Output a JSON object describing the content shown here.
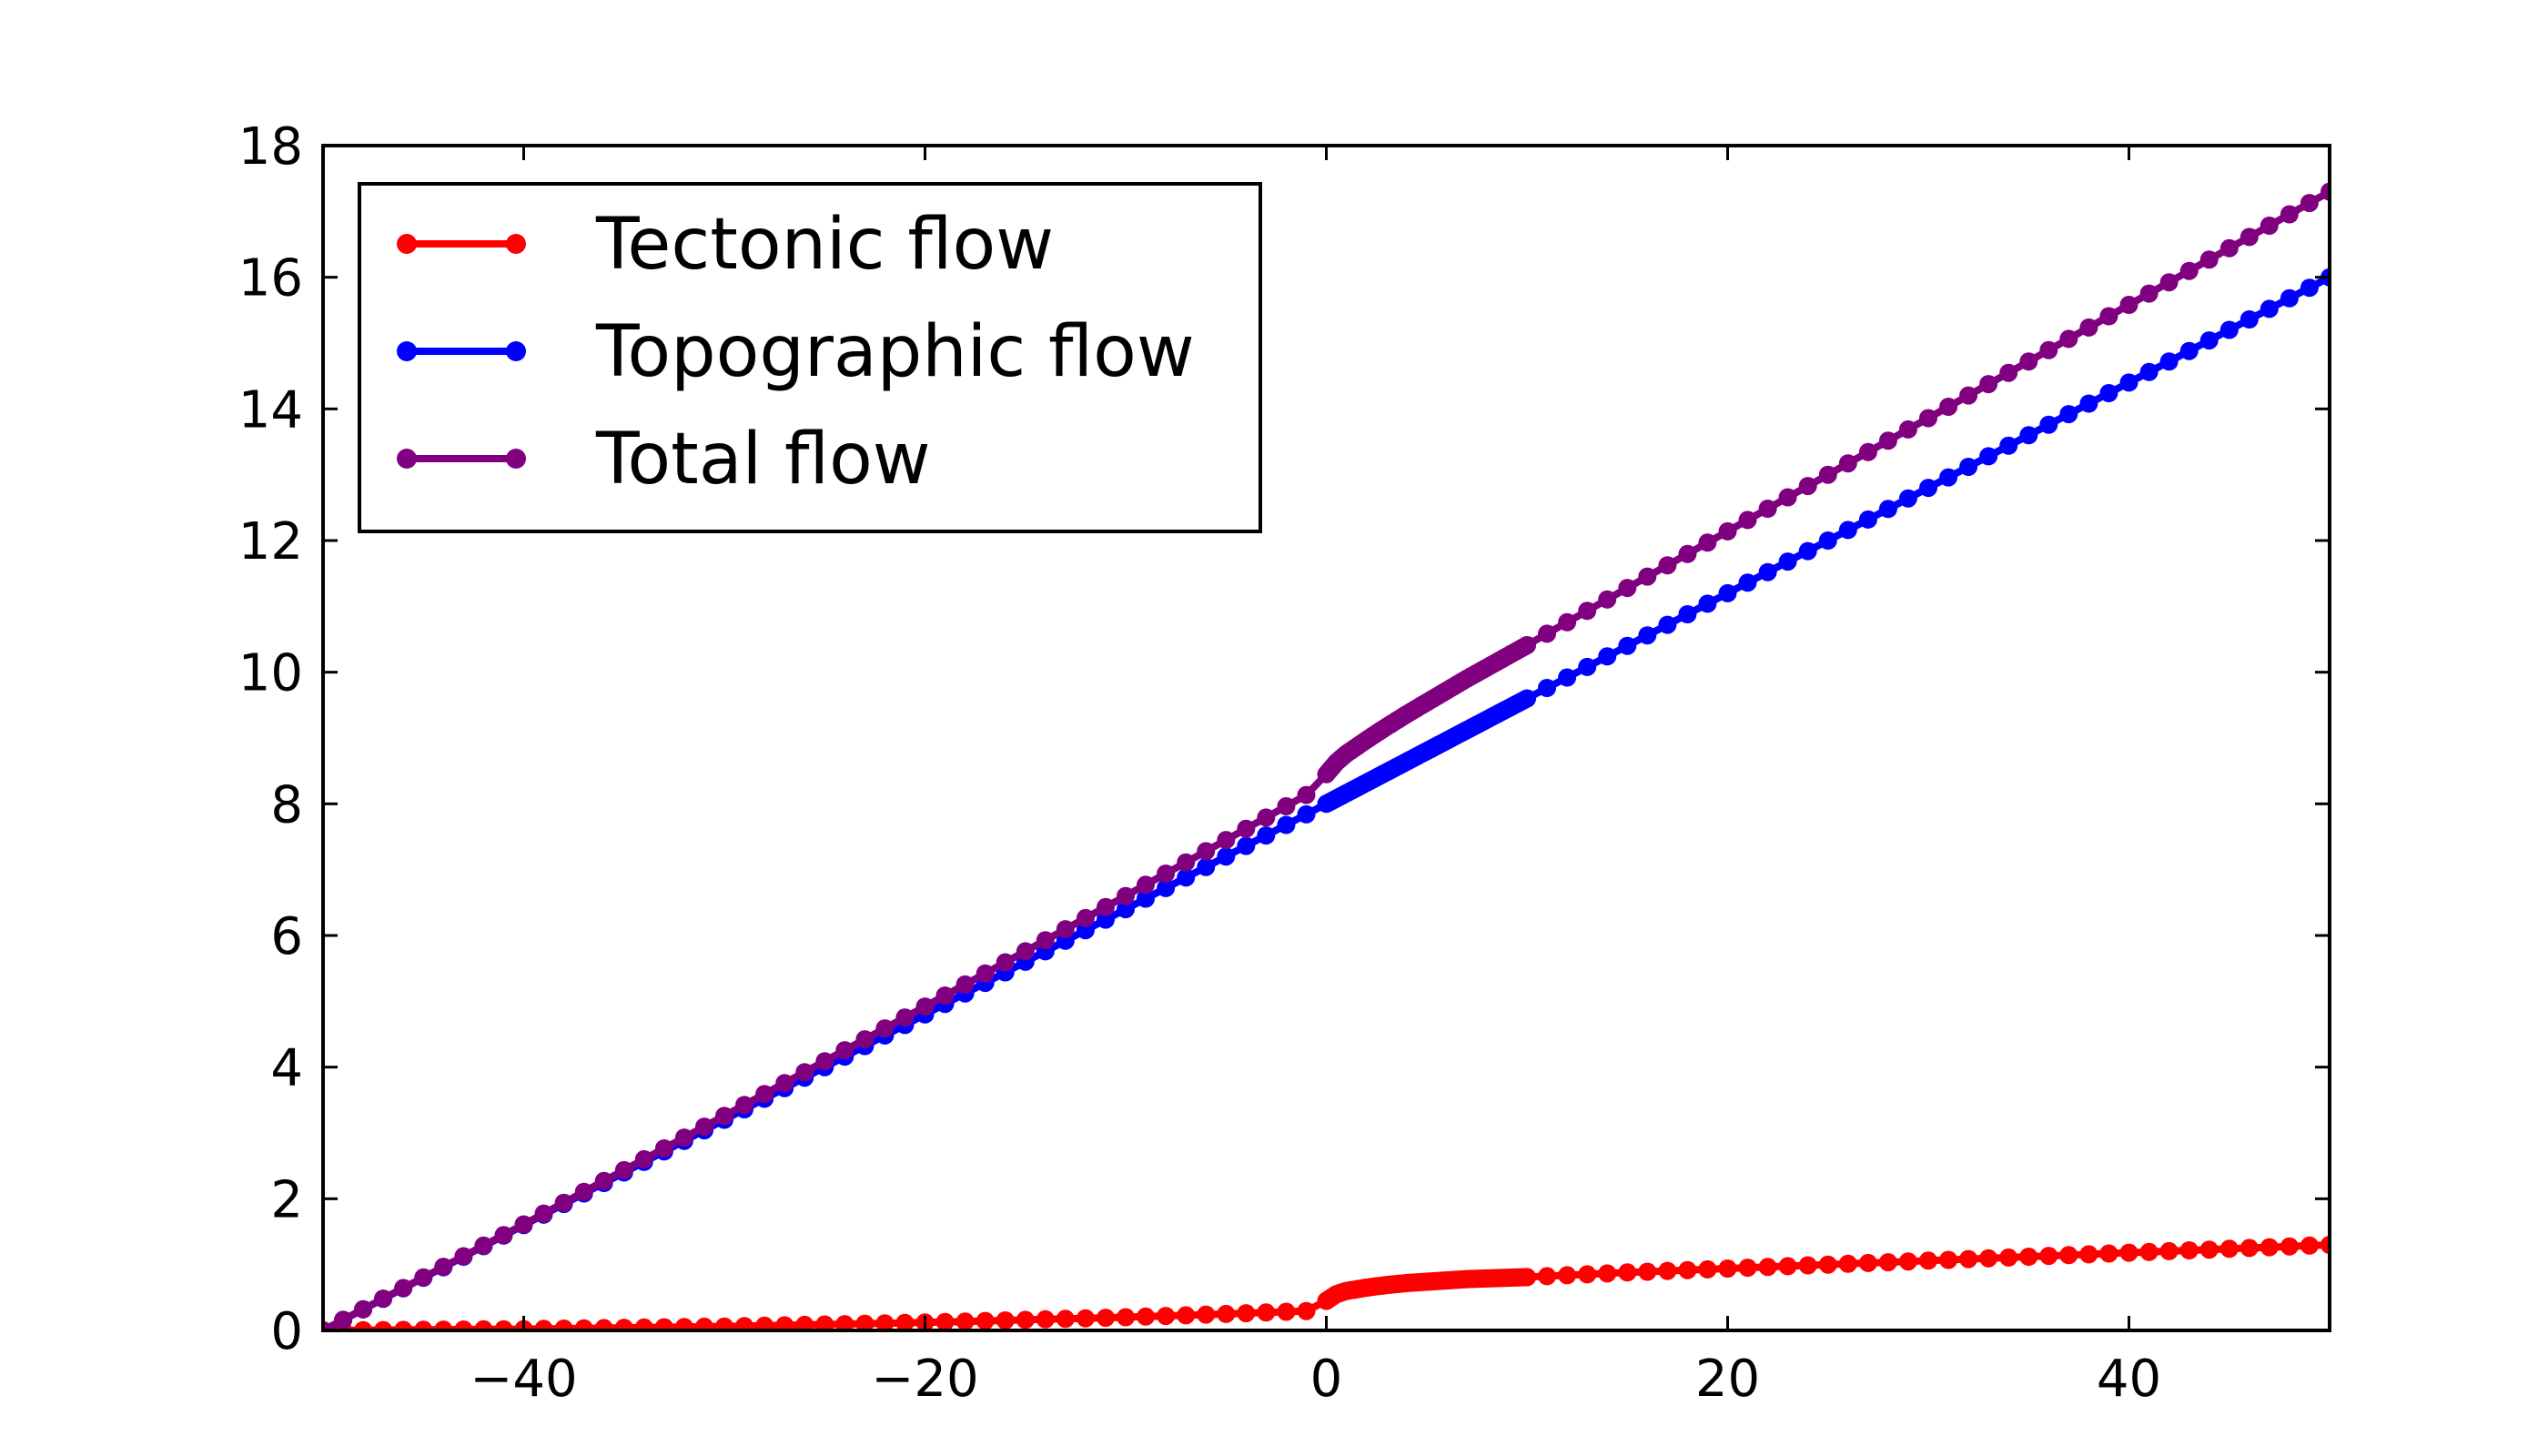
{
  "chart_data": {
    "type": "line",
    "title": "",
    "xlabel": "",
    "ylabel": "",
    "xlim": [
      -50,
      50
    ],
    "ylim": [
      0,
      18
    ],
    "xticks": [
      -40,
      -20,
      0,
      20,
      40
    ],
    "xtick_labels": [
      "−40",
      "−20",
      "0",
      "20",
      "40"
    ],
    "yticks": [
      0,
      2,
      4,
      6,
      8,
      10,
      12,
      14,
      16,
      18
    ],
    "ytick_labels": [
      "0",
      "2",
      "4",
      "6",
      "8",
      "10",
      "12",
      "14",
      "16",
      "18"
    ],
    "grid": false,
    "legend_position": "top-left",
    "markers": true,
    "series": [
      {
        "name": "Tectonic flow",
        "color": "#ff0000",
        "x": [
          -50,
          -45,
          -40,
          -35,
          -30,
          -25,
          -20,
          -15,
          -10,
          -5,
          -0.5,
          0,
          0.25,
          0.5,
          1,
          2,
          3,
          4,
          5,
          6,
          7,
          8,
          9,
          10,
          15,
          20,
          25,
          30,
          35,
          40,
          45,
          50
        ],
        "y": [
          0.0,
          0.01,
          0.02,
          0.04,
          0.06,
          0.09,
          0.12,
          0.16,
          0.2,
          0.25,
          0.3,
          0.45,
          0.5,
          0.55,
          0.6,
          0.65,
          0.69,
          0.72,
          0.74,
          0.76,
          0.78,
          0.79,
          0.8,
          0.81,
          0.88,
          0.94,
          1.0,
          1.06,
          1.12,
          1.18,
          1.24,
          1.3
        ]
      },
      {
        "name": "Topographic flow",
        "color": "#0000ff",
        "x": [
          -50,
          -40,
          -30,
          -20,
          -10,
          0,
          5,
          10,
          20,
          30,
          40,
          50
        ],
        "y": [
          0.0,
          1.6,
          3.2,
          4.8,
          6.4,
          8.0,
          8.8,
          9.6,
          11.2,
          12.8,
          14.4,
          16.0
        ]
      },
      {
        "name": "Total flow",
        "color": "#800080",
        "x": [
          -50,
          -40,
          -30,
          -20,
          -10,
          -5,
          -0.5,
          0,
          0.25,
          0.5,
          1,
          2,
          3,
          4,
          5,
          6,
          7,
          8,
          9,
          10,
          15,
          20,
          25,
          30,
          35,
          40,
          45,
          50
        ],
        "y": [
          0.0,
          1.61,
          3.26,
          4.92,
          6.6,
          7.45,
          8.22,
          8.45,
          8.54,
          8.63,
          8.76,
          8.97,
          9.17,
          9.36,
          9.54,
          9.72,
          9.9,
          10.07,
          10.24,
          10.41,
          11.28,
          12.14,
          13.0,
          13.86,
          14.72,
          15.58,
          16.44,
          17.3
        ]
      }
    ]
  }
}
